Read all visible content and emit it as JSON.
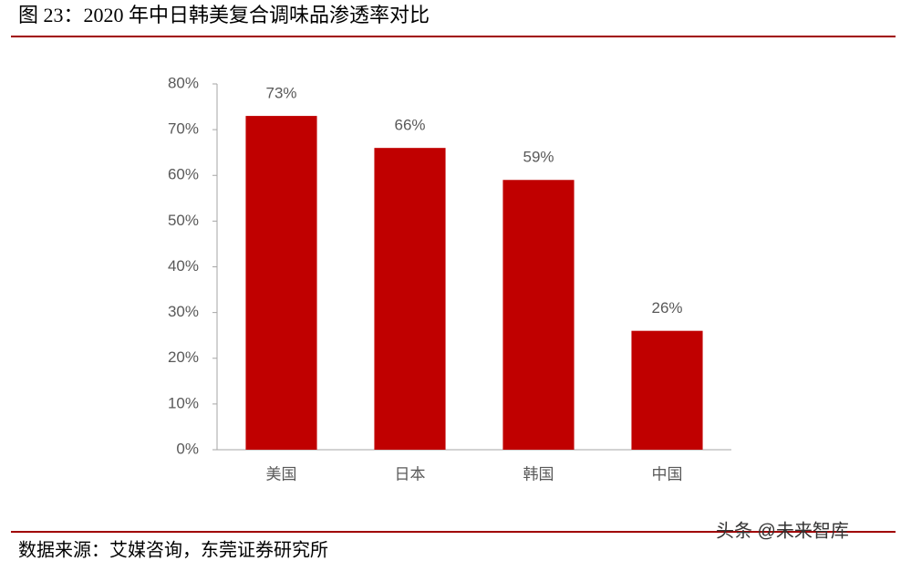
{
  "chart_data": {
    "type": "bar",
    "title": "图 23：2020 年中日韩美复合调味品渗透率对比",
    "source": "数据来源：艾媒咨询，东莞证券研究所",
    "watermark": "头条 @未来智库",
    "categories": [
      "美国",
      "日本",
      "韩国",
      "中国"
    ],
    "values": [
      73,
      66,
      59,
      26
    ],
    "value_labels": [
      "73%",
      "66%",
      "59%",
      "26%"
    ],
    "color": "#c00000",
    "ylim": [
      0,
      80
    ],
    "yticks": [
      {
        "value": 0,
        "label": "0%"
      },
      {
        "value": 10,
        "label": "10%"
      },
      {
        "value": 20,
        "label": "20%"
      },
      {
        "value": 30,
        "label": "30%"
      },
      {
        "value": 40,
        "label": "40%"
      },
      {
        "value": 50,
        "label": "50%"
      },
      {
        "value": 60,
        "label": "60%"
      },
      {
        "value": 70,
        "label": "70%"
      },
      {
        "value": 80,
        "label": "80%"
      }
    ],
    "grid": false
  }
}
